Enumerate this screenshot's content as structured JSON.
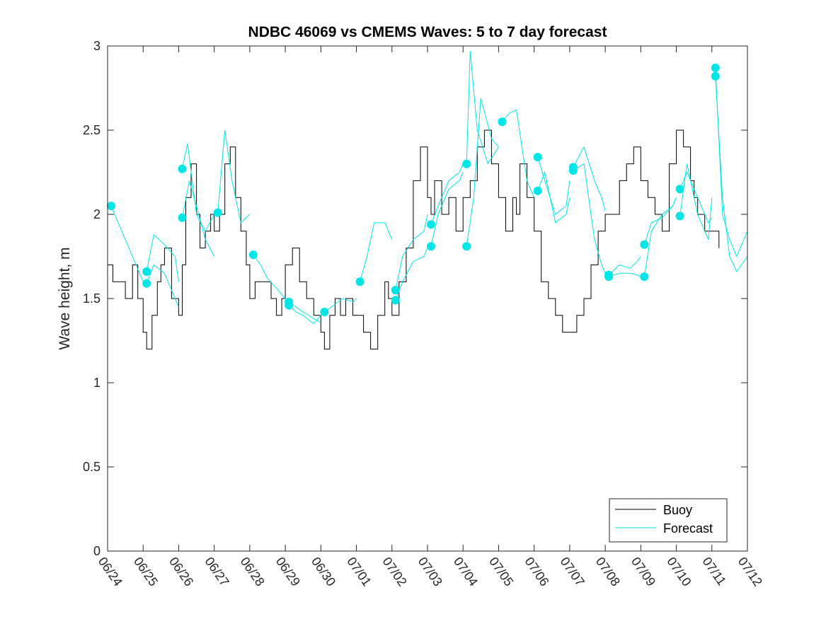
{
  "chart_data": {
    "type": "line",
    "title": "NDBC 46069 vs CMEMS Waves: 5 to 7 day forecast",
    "xlabel": "",
    "ylabel": "Wave height, m",
    "ylim": [
      0,
      3
    ],
    "yticks": [
      "0",
      "0.5",
      "1",
      "1.5",
      "2",
      "2.5",
      "3"
    ],
    "xlim": [
      0,
      18
    ],
    "xtick_labels": [
      "06/24",
      "06/25",
      "06/26",
      "06/27",
      "06/28",
      "06/29",
      "06/30",
      "07/01",
      "07/02",
      "07/03",
      "07/04",
      "07/05",
      "07/06",
      "07/07",
      "07/08",
      "07/09",
      "07/10",
      "07/11",
      "07/12"
    ],
    "grid": false,
    "legend": {
      "placement": "bottom-right",
      "entries": [
        "Buoy",
        "Forecast"
      ]
    },
    "colors": {
      "buoy": "#000000",
      "forecast": "#00e6e6"
    },
    "series": [
      {
        "name": "Buoy",
        "role": "buoy",
        "x": [
          0.0,
          0.15,
          0.3,
          0.5,
          0.7,
          0.85,
          1.0,
          1.1,
          1.25,
          1.4,
          1.5,
          1.6,
          1.8,
          2.0,
          2.1,
          2.2,
          2.35,
          2.5,
          2.6,
          2.75,
          2.9,
          3.0,
          3.15,
          3.3,
          3.45,
          3.6,
          3.75,
          3.9,
          4.0,
          4.15,
          4.3,
          4.45,
          4.6,
          4.75,
          4.9,
          5.0,
          5.2,
          5.4,
          5.6,
          5.8,
          6.0,
          6.1,
          6.25,
          6.4,
          6.55,
          6.7,
          6.9,
          7.0,
          7.2,
          7.4,
          7.6,
          7.8,
          7.9,
          8.0,
          8.2,
          8.4,
          8.6,
          8.8,
          9.0,
          9.1,
          9.2,
          9.4,
          9.6,
          9.8,
          10.0,
          10.2,
          10.4,
          10.6,
          10.8,
          11.0,
          11.2,
          11.4,
          11.5,
          11.6,
          11.8,
          12.0,
          12.2,
          12.4,
          12.6,
          12.8,
          13.0,
          13.2,
          13.4,
          13.6,
          13.8,
          14.0,
          14.2,
          14.4,
          14.6,
          14.8,
          15.0,
          15.2,
          15.4,
          15.6,
          15.8,
          16.0,
          16.2,
          16.4,
          16.5,
          16.6,
          16.8,
          17.0,
          17.2
        ],
        "y": [
          1.7,
          1.6,
          1.6,
          1.5,
          1.7,
          1.5,
          1.3,
          1.2,
          1.4,
          1.6,
          1.7,
          1.8,
          1.5,
          1.4,
          1.7,
          2.1,
          2.3,
          2.0,
          1.8,
          1.9,
          2.0,
          1.9,
          2.0,
          2.3,
          2.4,
          2.1,
          1.9,
          1.7,
          1.5,
          1.6,
          1.6,
          1.6,
          1.5,
          1.4,
          1.5,
          1.7,
          1.8,
          1.6,
          1.5,
          1.4,
          1.3,
          1.2,
          1.4,
          1.5,
          1.4,
          1.5,
          1.4,
          1.4,
          1.3,
          1.2,
          1.4,
          1.6,
          1.5,
          1.4,
          1.6,
          1.8,
          2.2,
          2.4,
          2.1,
          2.0,
          2.2,
          2.0,
          2.1,
          1.9,
          2.1,
          2.2,
          2.4,
          2.5,
          2.3,
          2.1,
          1.9,
          2.1,
          2.0,
          2.3,
          2.1,
          1.9,
          1.6,
          1.5,
          1.4,
          1.3,
          1.3,
          1.4,
          1.5,
          1.7,
          1.9,
          2.0,
          2.0,
          2.2,
          2.3,
          2.4,
          2.2,
          2.1,
          2.0,
          1.9,
          2.3,
          2.5,
          2.4,
          2.2,
          2.1,
          2.0,
          1.9,
          1.9,
          1.8
        ]
      },
      {
        "name": "Forecast",
        "role": "forecast",
        "x": [
          0.1,
          0.3,
          0.6,
          0.9,
          1.0
        ],
        "y": [
          2.05,
          1.95,
          1.8,
          1.65,
          1.6
        ]
      },
      {
        "name": "Forecast",
        "role": "forecast",
        "x": [
          1.1,
          1.3,
          1.6,
          1.9,
          2.0
        ],
        "y": [
          1.66,
          1.88,
          1.82,
          1.75,
          1.6
        ]
      },
      {
        "name": "Forecast",
        "role": "forecast",
        "x": [
          1.1,
          1.3,
          1.6,
          1.9,
          2.0
        ],
        "y": [
          1.59,
          1.7,
          1.65,
          1.5,
          1.45
        ]
      },
      {
        "name": "Forecast",
        "role": "forecast",
        "x": [
          2.1,
          2.25,
          2.5,
          2.75,
          3.0
        ],
        "y": [
          2.27,
          2.42,
          2.0,
          1.9,
          2.0
        ]
      },
      {
        "name": "Forecast",
        "role": "forecast",
        "x": [
          2.1,
          2.3,
          2.5,
          2.75,
          3.0
        ],
        "y": [
          1.98,
          2.2,
          2.05,
          1.85,
          1.75
        ]
      },
      {
        "name": "Forecast",
        "role": "forecast",
        "x": [
          3.1,
          3.3,
          3.5,
          3.75,
          4.0
        ],
        "y": [
          2.01,
          2.5,
          2.2,
          1.95,
          2.0
        ]
      },
      {
        "name": "Forecast",
        "role": "forecast",
        "x": [
          4.1,
          4.3,
          4.5,
          4.8,
          5.0
        ],
        "y": [
          1.76,
          1.7,
          1.62,
          1.55,
          1.5
        ]
      },
      {
        "name": "Forecast",
        "role": "forecast",
        "x": [
          5.1,
          5.3,
          5.5,
          5.8,
          6.0
        ],
        "y": [
          1.48,
          1.45,
          1.42,
          1.38,
          1.36
        ]
      },
      {
        "name": "Forecast",
        "role": "forecast",
        "x": [
          5.1,
          5.3,
          5.5,
          5.8,
          6.0
        ],
        "y": [
          1.46,
          1.42,
          1.4,
          1.35,
          1.4
        ]
      },
      {
        "name": "Forecast",
        "role": "forecast",
        "x": [
          6.1,
          6.3,
          6.6,
          6.9,
          7.0
        ],
        "y": [
          1.42,
          1.45,
          1.5,
          1.48,
          1.5
        ]
      },
      {
        "name": "Forecast",
        "role": "forecast",
        "x": [
          7.1,
          7.3,
          7.5,
          7.8,
          8.0
        ],
        "y": [
          1.6,
          1.75,
          1.95,
          1.95,
          1.85
        ]
      },
      {
        "name": "Forecast",
        "role": "forecast",
        "x": [
          8.1,
          8.3,
          8.6,
          8.9,
          9.0
        ],
        "y": [
          1.55,
          1.75,
          1.85,
          1.9,
          2.0
        ]
      },
      {
        "name": "Forecast",
        "role": "forecast",
        "x": [
          8.1,
          8.3,
          8.6,
          8.9,
          9.0
        ],
        "y": [
          1.49,
          1.6,
          1.72,
          1.75,
          1.8
        ]
      },
      {
        "name": "Forecast",
        "role": "forecast",
        "x": [
          9.1,
          9.3,
          9.6,
          9.9,
          10.0
        ],
        "y": [
          1.94,
          2.05,
          2.2,
          2.25,
          2.3
        ]
      },
      {
        "name": "Forecast",
        "role": "forecast",
        "x": [
          9.1,
          9.3,
          9.6,
          9.9,
          10.0
        ],
        "y": [
          1.81,
          2.0,
          2.15,
          2.2,
          2.25
        ]
      },
      {
        "name": "Forecast",
        "role": "forecast",
        "x": [
          10.1,
          10.2,
          10.4,
          10.7,
          11.0
        ],
        "y": [
          2.3,
          2.97,
          2.5,
          2.3,
          2.4
        ]
      },
      {
        "name": "Forecast",
        "role": "forecast",
        "x": [
          10.1,
          10.3,
          10.5,
          10.8,
          11.0
        ],
        "y": [
          1.81,
          2.1,
          2.69,
          2.45,
          2.4
        ]
      },
      {
        "name": "Forecast",
        "role": "forecast",
        "x": [
          11.1,
          11.3,
          11.5,
          11.8,
          12.0
        ],
        "y": [
          2.55,
          2.6,
          2.62,
          2.2,
          2.1
        ]
      },
      {
        "name": "Forecast",
        "role": "forecast",
        "x": [
          12.1,
          12.3,
          12.6,
          12.9,
          13.0
        ],
        "y": [
          2.34,
          2.2,
          2.0,
          2.05,
          2.2
        ]
      },
      {
        "name": "Forecast",
        "role": "forecast",
        "x": [
          12.1,
          12.3,
          12.6,
          12.9,
          13.0
        ],
        "y": [
          2.14,
          2.25,
          1.95,
          2.0,
          2.1
        ]
      },
      {
        "name": "Forecast",
        "role": "forecast",
        "x": [
          13.1,
          13.4,
          13.7,
          13.9,
          14.0
        ],
        "y": [
          2.28,
          2.4,
          2.2,
          2.1,
          2.02
        ]
      },
      {
        "name": "Forecast",
        "role": "forecast",
        "x": [
          13.1,
          13.4,
          13.7,
          13.9,
          14.0
        ],
        "y": [
          2.26,
          2.3,
          1.85,
          1.7,
          1.65
        ]
      },
      {
        "name": "Forecast",
        "role": "forecast",
        "x": [
          14.1,
          14.4,
          14.7,
          14.9,
          15.0
        ],
        "y": [
          1.64,
          1.7,
          1.68,
          1.72,
          1.75
        ]
      },
      {
        "name": "Forecast",
        "role": "forecast",
        "x": [
          14.1,
          14.4,
          14.7,
          14.9,
          15.0
        ],
        "y": [
          1.63,
          1.65,
          1.65,
          1.64,
          1.63
        ]
      },
      {
        "name": "Forecast",
        "role": "forecast",
        "x": [
          15.1,
          15.3,
          15.6,
          15.9,
          16.0
        ],
        "y": [
          1.82,
          1.95,
          1.98,
          2.05,
          2.1
        ]
      },
      {
        "name": "Forecast",
        "role": "forecast",
        "x": [
          15.1,
          15.3,
          15.6,
          15.9,
          16.0
        ],
        "y": [
          1.63,
          1.9,
          2.0,
          2.05,
          2.1
        ]
      },
      {
        "name": "Forecast",
        "role": "forecast",
        "x": [
          16.1,
          16.3,
          16.6,
          16.9,
          17.0
        ],
        "y": [
          2.15,
          2.25,
          2.1,
          1.95,
          1.98
        ]
      },
      {
        "name": "Forecast",
        "role": "forecast",
        "x": [
          16.1,
          16.3,
          16.6,
          16.9,
          17.0
        ],
        "y": [
          1.99,
          2.3,
          2.0,
          1.85,
          2.1
        ]
      },
      {
        "name": "Forecast",
        "role": "forecast",
        "x": [
          17.1,
          17.3,
          17.5,
          17.7,
          18.0
        ],
        "y": [
          2.87,
          2.0,
          1.85,
          1.75,
          1.9
        ]
      },
      {
        "name": "Forecast",
        "role": "forecast",
        "x": [
          17.1,
          17.3,
          17.5,
          17.7,
          18.0
        ],
        "y": [
          2.82,
          2.1,
          1.75,
          1.66,
          1.75
        ]
      }
    ]
  }
}
